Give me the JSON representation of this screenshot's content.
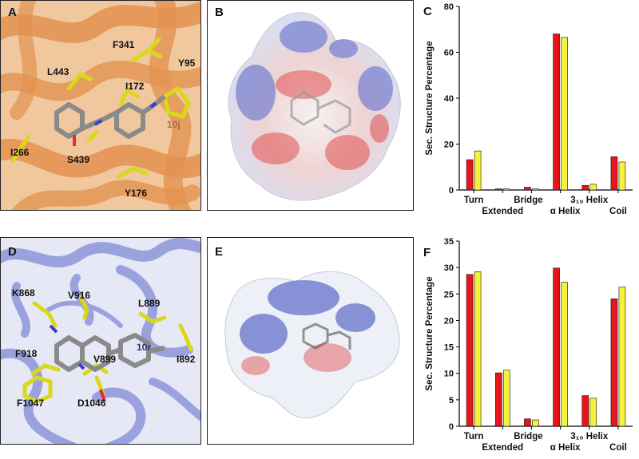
{
  "panels": {
    "A": {
      "letter": "A",
      "residues": [
        "F341",
        "Y95",
        "L443",
        "I172",
        "I266",
        "S439",
        "Y176"
      ],
      "ligand": "10j"
    },
    "B": {
      "letter": "B"
    },
    "C": {
      "letter": "C"
    },
    "D": {
      "letter": "D",
      "residues": [
        "K868",
        "V916",
        "L889",
        "F918",
        "I892",
        "V899",
        "F1047",
        "D1046"
      ],
      "ligand": "10r"
    },
    "E": {
      "letter": "E"
    },
    "F": {
      "letter": "F"
    }
  },
  "colors": {
    "series_a": "#e8141c",
    "series_b": "#f5f23a",
    "protein_top": "#e8a15e",
    "protein_bottom": "#9ea6e0",
    "sidechain": "#eaea28"
  },
  "chart_data": [
    {
      "type": "bar",
      "ylabel": "Sec. Structure Percentage",
      "ylim": [
        0,
        80
      ],
      "yticks": [
        0,
        20,
        40,
        60,
        80
      ],
      "categories": [
        "Turn",
        "Extended",
        "Bridge",
        "α Helix",
        "3₁₀ Helix",
        "Coil"
      ],
      "series": [
        {
          "values": [
            13.2,
            0.5,
            1.2,
            68,
            2.0,
            14.5
          ]
        },
        {
          "values": [
            17,
            0.5,
            0.5,
            66.5,
            2.5,
            12.2
          ]
        }
      ]
    },
    {
      "type": "bar",
      "ylabel": "Sec. Structure Percentage",
      "ylim": [
        0,
        35
      ],
      "yticks": [
        0,
        5,
        10,
        15,
        20,
        25,
        30,
        35
      ],
      "categories": [
        "Turn",
        "Extended",
        "Bridge",
        "α Helix",
        "3₁₀ Helix",
        "Coil"
      ],
      "series": [
        {
          "values": [
            28.7,
            10.1,
            1.4,
            29.9,
            5.8,
            24.1
          ]
        },
        {
          "values": [
            29.2,
            10.6,
            1.2,
            27.2,
            5.3,
            26.3
          ]
        }
      ]
    }
  ]
}
